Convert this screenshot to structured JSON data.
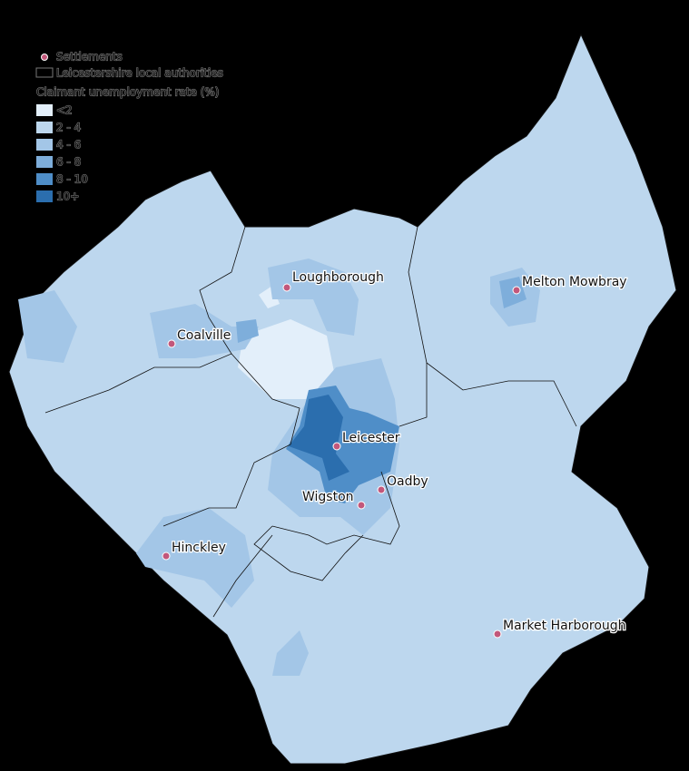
{
  "legend": {
    "settlements": "Settlements",
    "authorities": "Leicestershire local authorities",
    "title": "Claimant unemployment rate (%)",
    "classes": [
      {
        "label": "<2",
        "color": "#e3effa"
      },
      {
        "label": "2 - 4",
        "color": "#bdd7ee"
      },
      {
        "label": "4 - 6",
        "color": "#a3c6e7"
      },
      {
        "label": "6 - 8",
        "color": "#7eaedb"
      },
      {
        "label": "8 - 10",
        "color": "#4f8ec8"
      },
      {
        "label": "10+",
        "color": "#2b6eae"
      }
    ]
  },
  "settlements": [
    "Loughborough",
    "Melton Mowbray",
    "Coalville",
    "Leicester",
    "Oadby",
    "Wigston",
    "Hinckley",
    "Market Harborough"
  ]
}
